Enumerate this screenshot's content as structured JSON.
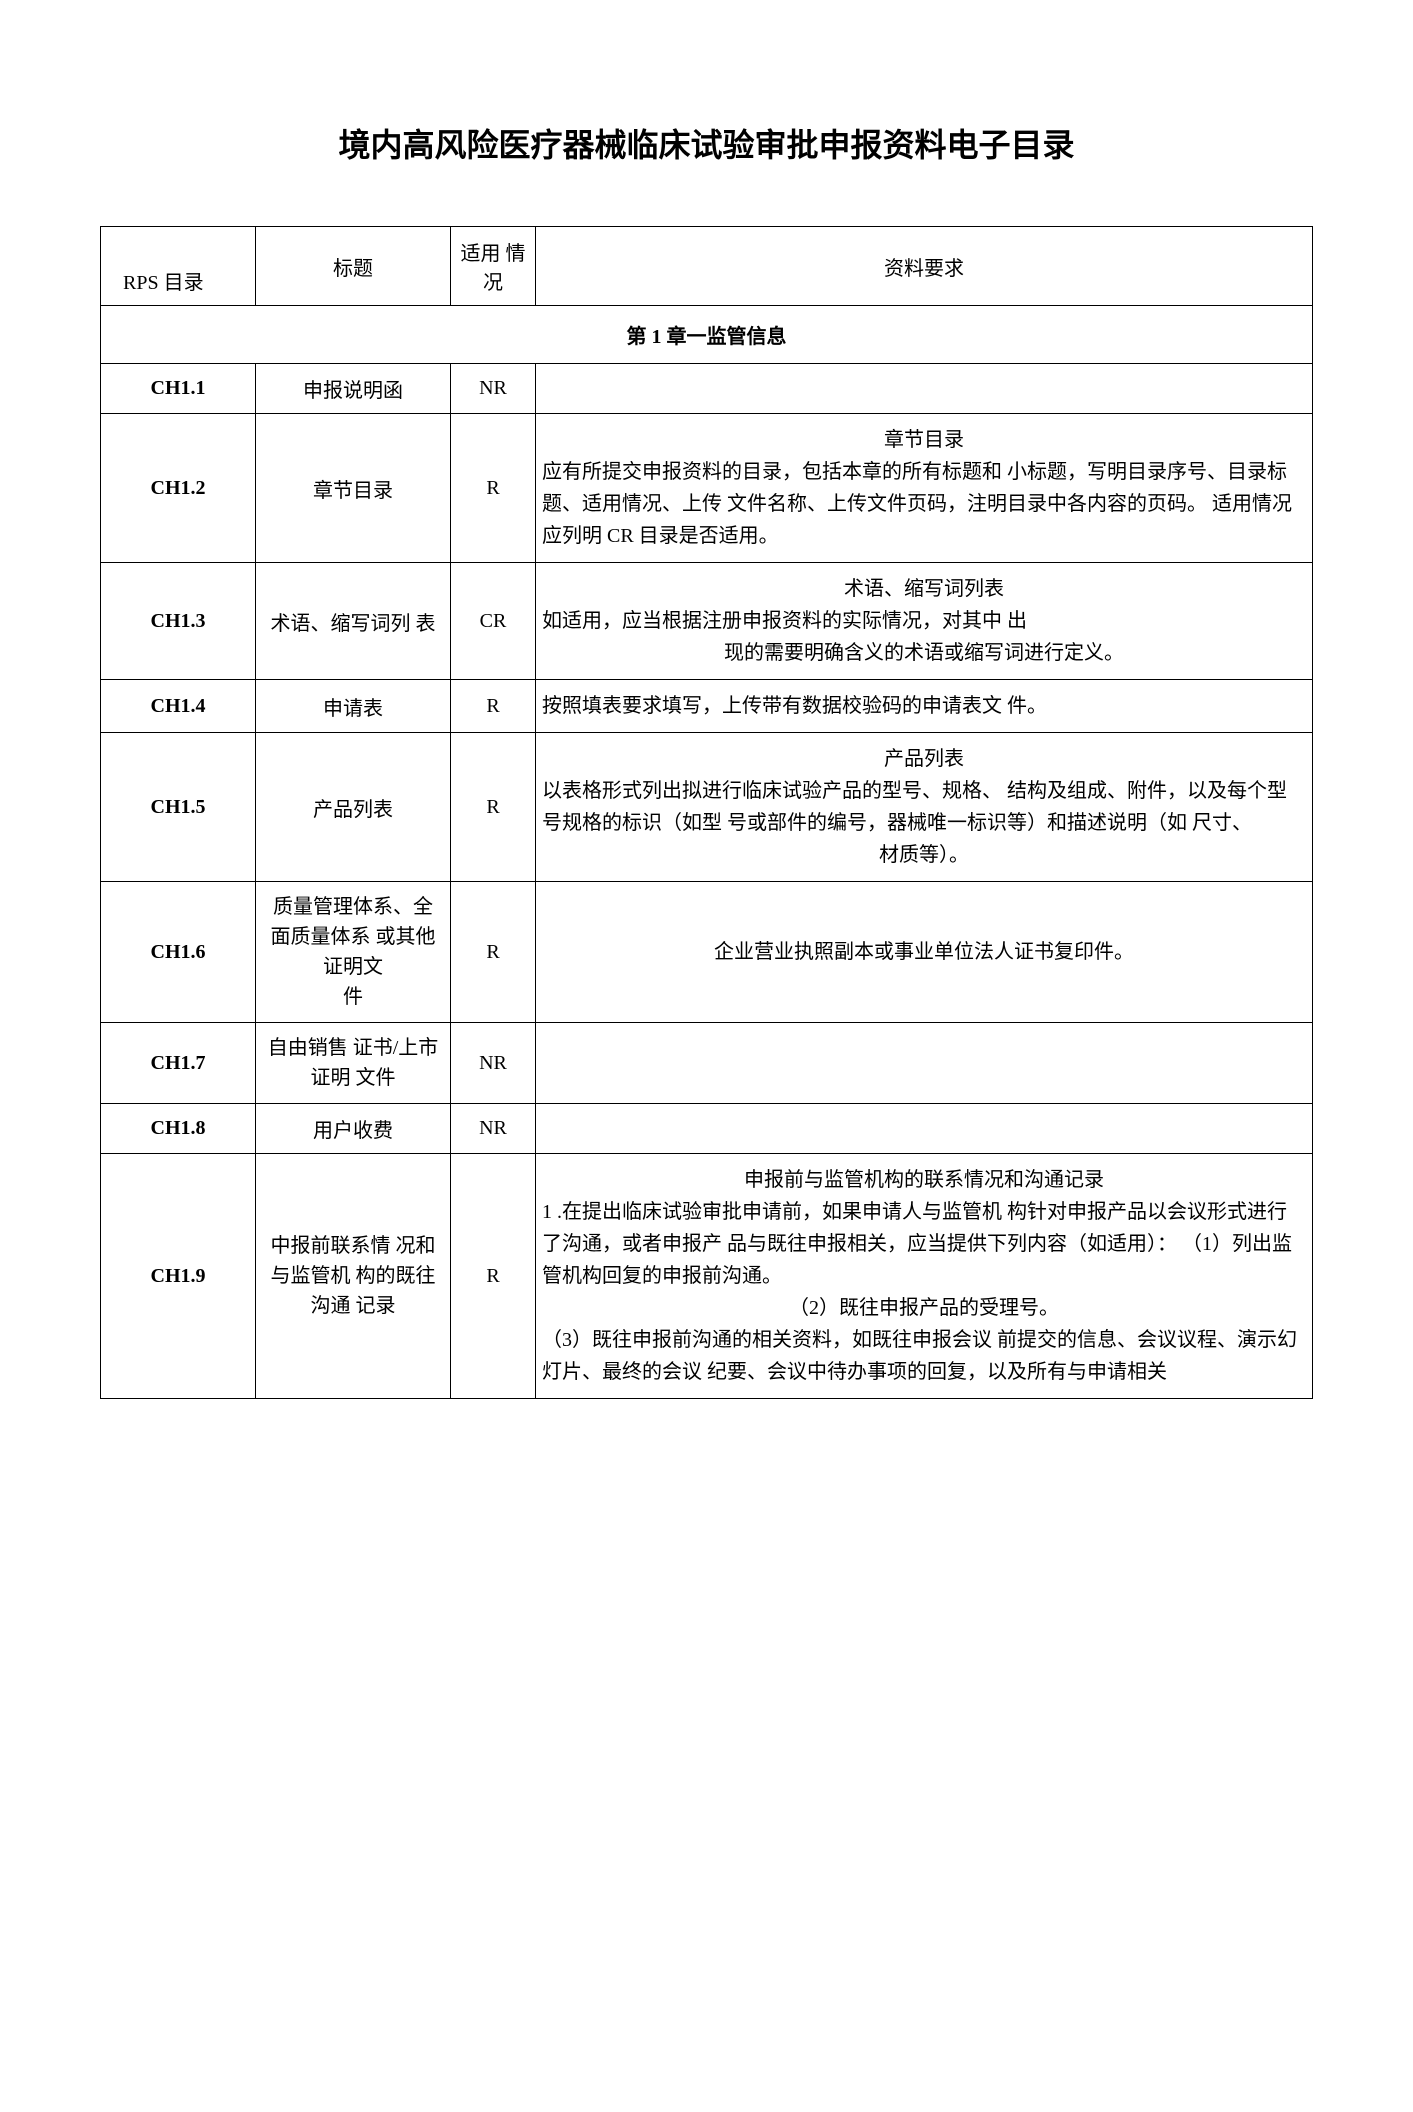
{
  "document": {
    "title": "境内高风险医疗器械临床试验审批申报资料电子目录"
  },
  "headers": {
    "rps": "RPS 目录",
    "title": "标题",
    "apply": "适用 情况",
    "req": "资料要求"
  },
  "chapter": {
    "label": "第 1 章一监管信息"
  },
  "rows": [
    {
      "rps": "CH1.1",
      "title": "申报说明函",
      "apply": "NR",
      "req_title": "",
      "req_body": ""
    },
    {
      "rps": "CH1.2",
      "title": "章节目录",
      "apply": "R",
      "req_title": "章节目录",
      "req_body": "应有所提交申报资料的目录，包括本章的所有标题和 小标题，写明目录序号、目录标题、适用情况、上传 文件名称、上传文件页码，注明目录中各内容的页码。 适用情况应列明 CR 目录是否适用。"
    },
    {
      "rps": "CH1.3",
      "title": "术语、缩写词列 表",
      "apply": "CR",
      "req_title": "术语、缩写词列表",
      "req_body": "如适用，应当根据注册申报资料的实际情况，对其中 出现的需要明确含义的术语或缩写词进行定义。"
    },
    {
      "rps": "CH1.4",
      "title": "申请表",
      "apply": "R",
      "req_title": "",
      "req_body": "按照填表要求填写，上传带有数据校验码的申请表文 件。"
    },
    {
      "rps": "CH1.5",
      "title": "产品列表",
      "apply": "R",
      "req_title": "产品列表",
      "req_body": "以表格形式列出拟进行临床试验产品的型号、规格、    结构及组成、附件，以及每个型号规格的标识（如型  号或部件的编号，器械唯一标识等）和描述说明（如  尺寸、材质等）。"
    },
    {
      "rps": "CH1.6",
      "title": "质量管理体系、全面质量体系 或其他证明文\n件",
      "apply": "R",
      "req_title": "",
      "req_body": "企业营业执照副本或事业单位法人证书复印件。",
      "req_center": true
    },
    {
      "rps": "CH1.7",
      "title": "自由销售 证书/上市证明 文件",
      "apply": "NR",
      "req_title": "",
      "req_body": ""
    },
    {
      "rps": "CH1.8",
      "title": "用户收费",
      "apply": "NR",
      "req_title": "",
      "req_body": ""
    },
    {
      "rps": "CH1.9",
      "title": "中报前联系情 况和与监管机 构的既往沟通 记录",
      "apply": "R",
      "req_title": "申报前与监管机构的联系情况和沟通记录",
      "req_body": "1 .在提出临床试验审批申请前，如果申请人与监管机 构针对申报产品以会议形式进行了沟通，或者申报产 品与既往申报相关，应当提供下列内容（如适用）：   （1）列出监管机构回复的申报前沟通。\n（2）既往申报产品的受理号。\n（3）既往申报前沟通的相关资料，如既往申报会议 前提交的信息、会议议程、演示幻灯片、最终的会议 纪要、会议中待办事项的回复，以及所有与申请相关"
    }
  ]
}
